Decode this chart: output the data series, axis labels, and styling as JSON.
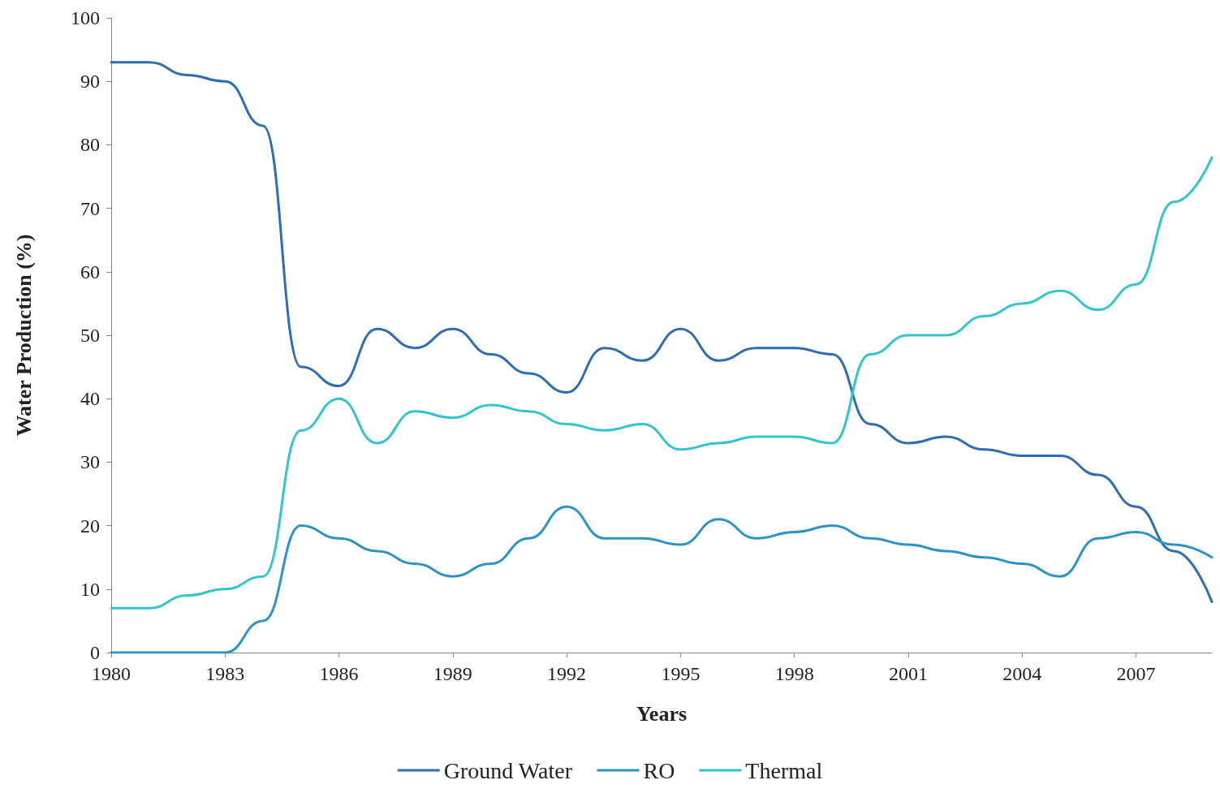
{
  "chart_data": {
    "type": "line",
    "xlabel": "Years",
    "ylabel": "Water Production (%)",
    "x": [
      1980,
      1981,
      1982,
      1983,
      1984,
      1985,
      1986,
      1987,
      1988,
      1989,
      1990,
      1991,
      1992,
      1993,
      1994,
      1995,
      1996,
      1997,
      1998,
      1999,
      2000,
      2001,
      2002,
      2003,
      2004,
      2005,
      2006,
      2007,
      2008,
      2009
    ],
    "series": [
      {
        "name": "Ground Water",
        "color": "#2e6db4",
        "values": [
          93,
          93,
          91,
          90,
          83,
          45,
          42,
          51,
          48,
          51,
          47,
          44,
          41,
          48,
          46,
          51,
          46,
          48,
          48,
          47,
          36,
          33,
          34,
          32,
          31,
          31,
          28,
          23,
          16,
          8
        ]
      },
      {
        "name": "RO",
        "color": "#2c93c6",
        "values": [
          0,
          0,
          0,
          0,
          5,
          20,
          18,
          16,
          14,
          12,
          14,
          18,
          23,
          18,
          18,
          17,
          21,
          18,
          19,
          20,
          18,
          17,
          16,
          15,
          14,
          12,
          18,
          19,
          17,
          15
        ]
      },
      {
        "name": "Thermal",
        "color": "#33c4cc",
        "values": [
          7,
          7,
          9,
          10,
          12,
          35,
          40,
          33,
          38,
          37,
          39,
          38,
          36,
          35,
          36,
          32,
          33,
          34,
          34,
          33,
          47,
          50,
          50,
          53,
          55,
          57,
          54,
          58,
          71,
          78
        ]
      }
    ],
    "xlim": [
      1980,
      2009
    ],
    "xticks": [
      1980,
      1983,
      1986,
      1989,
      1992,
      1995,
      1998,
      2001,
      2004,
      2007
    ],
    "ylim": [
      0,
      100
    ],
    "yticks": [
      0,
      10,
      20,
      30,
      40,
      50,
      60,
      70,
      80,
      90,
      100
    ],
    "grid": false,
    "legend": "bottom",
    "marker": "none",
    "line_style": "solid"
  }
}
